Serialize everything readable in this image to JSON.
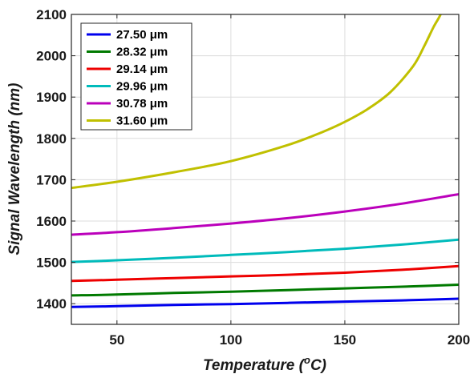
{
  "chart_data": {
    "type": "line",
    "xlabel": "Temperature (°C)",
    "xlabel_base": "Temperature (",
    "xlabel_sup": "o",
    "xlabel_end": "C)",
    "ylabel": "Signal Wavelength (nm)",
    "xlim": [
      30,
      200
    ],
    "ylim": [
      1350,
      2100
    ],
    "xticks": [
      50,
      100,
      150,
      200
    ],
    "yticks": [
      1400,
      1500,
      1600,
      1700,
      1800,
      1900,
      2000,
      2100
    ],
    "grid": true,
    "legend_position": "top-left",
    "series": [
      {
        "name": "27.50 μm",
        "color": "#0000ee",
        "x": [
          30,
          50,
          75,
          100,
          125,
          150,
          175,
          200
        ],
        "y": [
          1392,
          1394,
          1397,
          1399,
          1402,
          1405,
          1408,
          1412
        ]
      },
      {
        "name": "28.32 μm",
        "color": "#007a00",
        "x": [
          30,
          50,
          75,
          100,
          125,
          150,
          175,
          200
        ],
        "y": [
          1420,
          1422,
          1426,
          1429,
          1433,
          1437,
          1441,
          1446
        ]
      },
      {
        "name": "29.14 μm",
        "color": "#ee0000",
        "x": [
          30,
          50,
          75,
          100,
          125,
          150,
          175,
          200
        ],
        "y": [
          1455,
          1458,
          1462,
          1466,
          1470,
          1475,
          1482,
          1491
        ]
      },
      {
        "name": "29.96 μm",
        "color": "#00bbbb",
        "x": [
          30,
          50,
          75,
          100,
          125,
          150,
          175,
          200
        ],
        "y": [
          1501,
          1505,
          1511,
          1518,
          1525,
          1533,
          1543,
          1555
        ]
      },
      {
        "name": "30.78 μm",
        "color": "#bb00bb",
        "x": [
          30,
          50,
          75,
          100,
          125,
          150,
          175,
          200
        ],
        "y": [
          1567,
          1573,
          1583,
          1594,
          1607,
          1623,
          1642,
          1665
        ]
      },
      {
        "name": "31.60 μm",
        "color": "#c0c000",
        "x": [
          30,
          50,
          75,
          100,
          125,
          140,
          150,
          160,
          170,
          180,
          185,
          189,
          192,
          193.5
        ],
        "y": [
          1680,
          1695,
          1718,
          1745,
          1784,
          1815,
          1840,
          1871,
          1912,
          1975,
          2025,
          2070,
          2100,
          2130
        ]
      }
    ]
  }
}
